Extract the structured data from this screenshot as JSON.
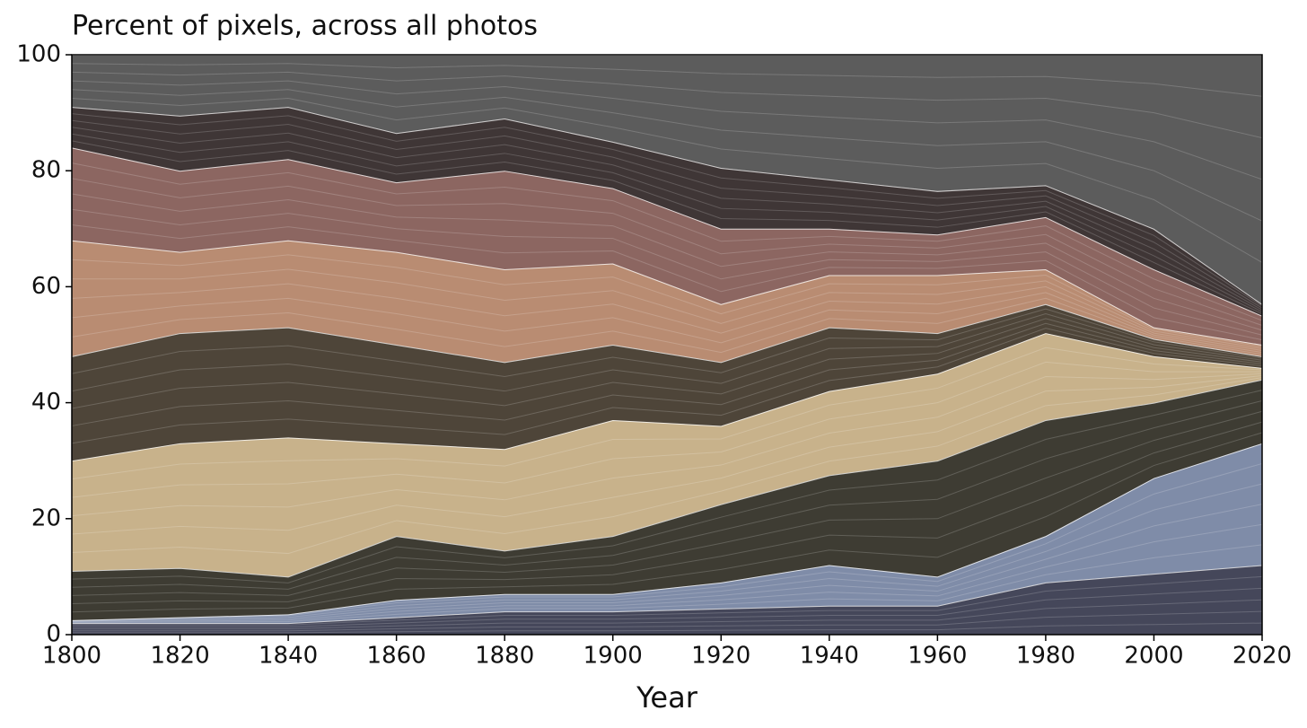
{
  "chart_data": {
    "type": "stacked_area",
    "title": "Percent of pixels, across all photos",
    "x_label": "Year",
    "x": [
      1800,
      1820,
      1840,
      1860,
      1880,
      1900,
      1920,
      1940,
      1960,
      1980,
      2000,
      2020
    ],
    "xlim": [
      1800,
      2020
    ],
    "xticks": [
      1800,
      1820,
      1840,
      1860,
      1880,
      1900,
      1920,
      1940,
      1960,
      1980,
      2000,
      2020
    ],
    "ylim": [
      0,
      100
    ],
    "yticks": [
      0,
      20,
      40,
      60,
      80,
      100
    ],
    "series": [
      {
        "color": "#45475a",
        "values": [
          2,
          2,
          2,
          3,
          4,
          4,
          4.5,
          5,
          5,
          9,
          10.5,
          12
        ]
      },
      {
        "color": "#7f8ca8",
        "values": [
          0.5,
          1,
          1.5,
          3,
          3,
          3,
          4.5,
          7,
          5,
          8,
          16.5,
          21
        ]
      },
      {
        "color": "#3e3c33",
        "values": [
          8.5,
          8.5,
          6.5,
          11,
          7.5,
          10,
          13.5,
          15.5,
          20,
          20,
          13,
          11
        ]
      },
      {
        "color": "#c8b28b",
        "values": [
          19,
          21.5,
          24,
          16,
          17.5,
          20,
          13.5,
          14.5,
          15,
          15,
          8,
          2
        ]
      },
      {
        "color": "#4e4539",
        "values": [
          18,
          19,
          19,
          17,
          15,
          13,
          11,
          11,
          7,
          5,
          3,
          2
        ]
      },
      {
        "color": "#b98c72",
        "values": [
          20,
          14,
          15,
          16,
          16,
          14,
          10,
          9,
          10,
          6,
          2,
          2
        ]
      },
      {
        "color": "#8c6661",
        "values": [
          16,
          14,
          14,
          12,
          17,
          13,
          13,
          8,
          7,
          9,
          10,
          5
        ]
      },
      {
        "color": "#3f3636",
        "values": [
          7,
          9.5,
          9,
          8.5,
          9,
          8,
          10.5,
          8.5,
          7.5,
          5.5,
          7,
          2
        ]
      },
      {
        "color": "#5c5c5c",
        "values": [
          9,
          10.5,
          9,
          13.5,
          11,
          15,
          19.5,
          21.5,
          23.5,
          22.5,
          30,
          43
        ]
      }
    ]
  }
}
